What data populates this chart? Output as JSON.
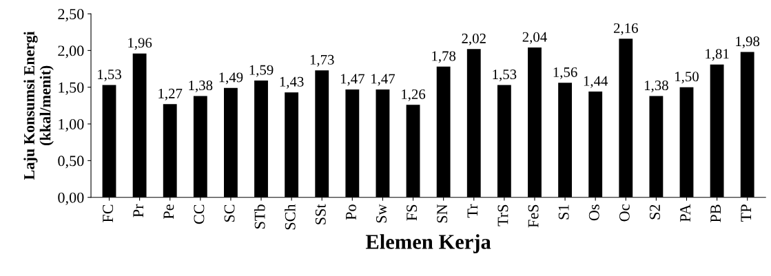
{
  "chart_data": {
    "type": "bar",
    "xlabel": "Elemen Kerja",
    "ylabel": "Laju Konsumsi Energi\n(kkal/menit)",
    "categories": [
      "FC",
      "Pr",
      "Pe",
      "CC",
      "SC",
      "STb",
      "SCh",
      "SSt",
      "Po",
      "Sw",
      "FS",
      "SN",
      "Tr",
      "TrS",
      "FeS",
      "S1",
      "Os",
      "Oc",
      "S2",
      "PA",
      "PB",
      "TP"
    ],
    "values": [
      1.53,
      1.96,
      1.27,
      1.38,
      1.49,
      1.59,
      1.43,
      1.73,
      1.47,
      1.47,
      1.26,
      1.78,
      2.02,
      1.53,
      2.04,
      1.56,
      1.44,
      2.16,
      1.38,
      1.5,
      1.81,
      1.98
    ],
    "value_labels": [
      "1,53",
      "1,96",
      "1,27",
      "1,38",
      "1,49",
      "1,59",
      "1,43",
      "1,73",
      "1,47",
      "1,47",
      "1,26",
      "1,78",
      "2,02",
      "1,53",
      "2,04",
      "1,56",
      "1,44",
      "2,16",
      "1,38",
      "1,50",
      "1,81",
      "1,98"
    ],
    "color": "#000000",
    "ylim": [
      0,
      2.5
    ],
    "yticks": [
      {
        "value": 0,
        "label": "0,00"
      },
      {
        "value": 0.5,
        "label": "0,50"
      },
      {
        "value": 1,
        "label": "1,00"
      },
      {
        "value": 1.5,
        "label": "1,50"
      },
      {
        "value": 2,
        "label": "2,00"
      },
      {
        "value": 2.5,
        "label": "2,50"
      }
    ],
    "grid": false,
    "legend": false
  }
}
